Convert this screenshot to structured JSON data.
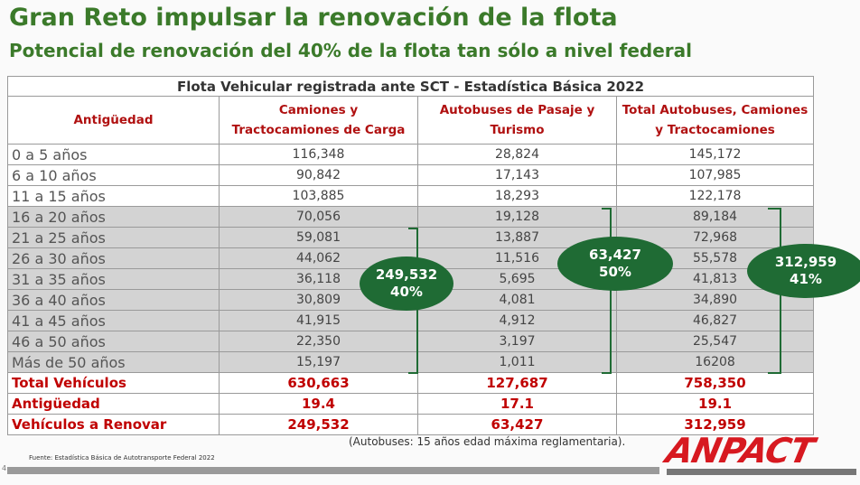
{
  "header": {
    "title": "Gran Reto impulsar la renovación de la flota",
    "subtitle": "Potencial de renovación del 40% de la flota tan sólo a nivel federal"
  },
  "table": {
    "caption": "Flota Vehicular registrada ante SCT - Estadística Básica 2022",
    "columns": [
      "Antigüedad",
      "Camiones y Tractocamiones de Carga",
      "Autobuses de Pasaje y Turismo",
      "Total Autobuses, Camiones y Tractocamiones"
    ],
    "rows": [
      [
        "0 a 5 años",
        "116,348",
        "28,824",
        "145,172"
      ],
      [
        "6 a 10 años",
        "90,842",
        "17,143",
        "107,985"
      ],
      [
        "11 a 15 años",
        "103,885",
        "18,293",
        "122,178"
      ],
      [
        "16 a 20 años",
        "70,056",
        "19,128",
        "89,184"
      ],
      [
        "21 a 25 años",
        "59,081",
        "13,887",
        "72,968"
      ],
      [
        "26 a 30 años",
        "44,062",
        "11,516",
        "55,578"
      ],
      [
        "31 a 35 años",
        "36,118",
        "5,695",
        "41,813"
      ],
      [
        "36 a 40 años",
        "30,809",
        "4,081",
        "34,890"
      ],
      [
        "41 a 45 años",
        "41,915",
        "4,912",
        "46,827"
      ],
      [
        "46 a 50 años",
        "22,350",
        "3,197",
        "25,547"
      ],
      [
        "Más de 50 años",
        "15,197",
        "1,011",
        "16208"
      ]
    ],
    "summary_rows": [
      [
        "Total Vehículos",
        "630,663",
        "127,687",
        "758,350"
      ],
      [
        "Antigüedad",
        "19.4",
        "17.1",
        "19.1"
      ],
      [
        "Vehículos a Renovar",
        "249,532",
        "63,427",
        "312,959"
      ]
    ]
  },
  "callouts": [
    {
      "value": "249,532",
      "percent": "40%"
    },
    {
      "value": "63,427",
      "percent": "50%"
    },
    {
      "value": "312,959",
      "percent": "41%"
    }
  ],
  "note": "(Autobuses: 15 años edad máxima reglamentaria).",
  "source": "Fuente: Estadística Básica de Autotransporte Federal 2022",
  "logo": "ANPACT",
  "page_number": "4"
}
